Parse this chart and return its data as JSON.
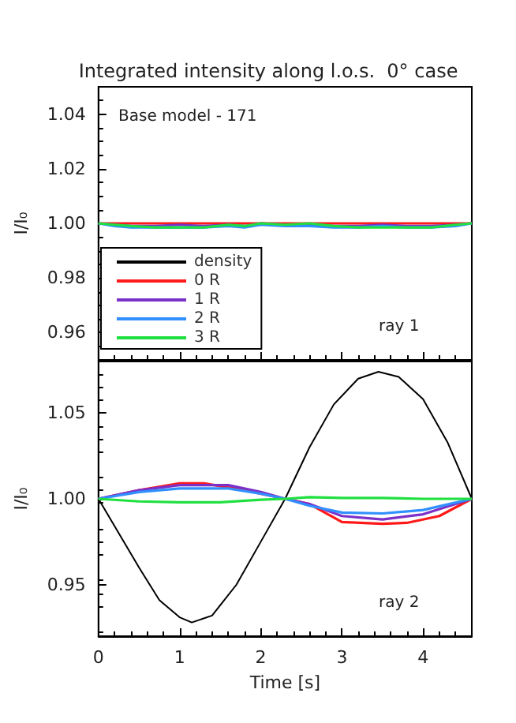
{
  "chart_data": [
    {
      "type": "line",
      "title": "Integrated intensity along l.o.s.  0° case",
      "ylabel": "I/I₀",
      "annotations": [
        "Base model - 171",
        "ray 1"
      ],
      "xlim": [
        0,
        4.6
      ],
      "xticks": [
        {
          "value": 0,
          "label": null
        },
        {
          "value": 1,
          "label": null
        },
        {
          "value": 2,
          "label": null
        },
        {
          "value": 3,
          "label": null
        },
        {
          "value": 4,
          "label": null
        }
      ],
      "ylim": [
        0.95,
        1.05
      ],
      "yticks": [
        0.96,
        0.98,
        {
          "value": 1,
          "label": "1.00"
        },
        1.02,
        1.04
      ],
      "tick_labels": "y",
      "legend": "bottom left",
      "grid": false,
      "line_style": "solid",
      "marker": "none",
      "series": [
        {
          "name": "density",
          "color": "#000000"
        },
        {
          "name": "0 R",
          "color": "#ff1a1a",
          "x": [
            0,
            0.5,
            1,
            1.5,
            2,
            2.5,
            3,
            3.5,
            4,
            4.6
          ],
          "values": [
            1,
            1,
            1,
            1,
            1,
            1,
            1,
            1,
            1,
            1
          ]
        },
        {
          "name": "1 R",
          "color": "#7b30c8",
          "x": [
            0,
            0.2,
            0.4,
            0.7,
            1.0,
            1.3,
            1.6,
            1.8,
            2.0,
            2.3,
            2.6,
            2.9,
            3.2,
            3.5,
            3.8,
            4.1,
            4.4,
            4.6
          ],
          "values": [
            1,
            0.9995,
            0.999,
            0.999,
            0.9995,
            0.999,
            0.9995,
            0.999,
            1,
            0.9995,
            0.9995,
            0.999,
            0.999,
            0.9995,
            0.999,
            0.999,
            0.9995,
            1
          ]
        },
        {
          "name": "2 R",
          "color": "#3090ff",
          "x": [
            0,
            0.2,
            0.4,
            0.7,
            1.0,
            1.3,
            1.6,
            1.8,
            2.0,
            2.3,
            2.6,
            2.9,
            3.2,
            3.5,
            3.8,
            4.1,
            4.4,
            4.6
          ],
          "values": [
            1,
            0.999,
            0.9985,
            0.9985,
            0.9985,
            0.9985,
            0.999,
            0.9985,
            0.9995,
            0.999,
            0.999,
            0.9985,
            0.9985,
            0.999,
            0.9985,
            0.9985,
            0.999,
            1
          ]
        },
        {
          "name": "3 R",
          "color": "#20e040",
          "x": [
            0,
            0.2,
            0.4,
            0.7,
            1.0,
            1.3,
            1.6,
            1.8,
            2.0,
            2.3,
            2.6,
            2.9,
            3.2,
            3.5,
            3.8,
            4.1,
            4.4,
            4.6
          ],
          "values": [
            1,
            0.9995,
            0.999,
            0.9985,
            0.9985,
            0.9985,
            0.9995,
            0.999,
            1,
            0.9995,
            1,
            0.999,
            0.9985,
            0.9985,
            0.9985,
            0.9985,
            0.9995,
            1
          ]
        }
      ]
    },
    {
      "type": "line",
      "xlabel": "Time [s]",
      "ylabel": "I/I₀",
      "annotations": [
        "ray 2"
      ],
      "xlim": [
        0,
        4.6
      ],
      "xticks": [
        0,
        1,
        2,
        3,
        4
      ],
      "ylim": [
        0.92,
        1.08
      ],
      "yticks": [
        0.95,
        {
          "value": 1,
          "label": "1.00"
        },
        1.05
      ],
      "grid": false,
      "line_style": "solid",
      "marker": "none",
      "series": [
        {
          "color": "#000000",
          "x": [
            0,
            0.25,
            0.5,
            0.75,
            1.0,
            1.15,
            1.4,
            1.7,
            2.0,
            2.3,
            2.6,
            2.9,
            3.2,
            3.45,
            3.7,
            4.0,
            4.3,
            4.6
          ],
          "values": [
            1,
            0.98,
            0.96,
            0.941,
            0.931,
            0.928,
            0.932,
            0.95,
            0.975,
            1,
            1.03,
            1.055,
            1.07,
            1.074,
            1.071,
            1.058,
            1.033,
            1
          ]
        },
        {
          "color": "#ff1a1a",
          "x": [
            0,
            0.5,
            1.0,
            1.3,
            1.8,
            2.3,
            2.6,
            3.0,
            3.5,
            3.8,
            4.2,
            4.6
          ],
          "values": [
            1,
            1.005,
            1.009,
            1.009,
            1.005,
            1,
            0.997,
            0.9865,
            0.9855,
            0.986,
            0.99,
            1
          ]
        },
        {
          "color": "#7b30c8",
          "x": [
            0,
            0.5,
            1.0,
            1.6,
            2.0,
            2.3,
            2.6,
            3.0,
            3.5,
            4.0,
            4.6
          ],
          "values": [
            1,
            1.005,
            1.008,
            1.008,
            1.004,
            1,
            0.997,
            0.99,
            0.988,
            0.991,
            1
          ]
        },
        {
          "color": "#3090ff",
          "x": [
            0,
            0.5,
            1.0,
            1.6,
            2.0,
            2.3,
            2.6,
            3.0,
            3.5,
            4.0,
            4.6
          ],
          "values": [
            1,
            1.004,
            1.006,
            1.006,
            1.003,
            1,
            0.996,
            0.992,
            0.9915,
            0.9935,
            1
          ]
        },
        {
          "color": "#20e040",
          "x": [
            0,
            0.5,
            1.0,
            1.5,
            2.0,
            2.3,
            2.6,
            3.0,
            3.5,
            4.0,
            4.6
          ],
          "values": [
            1,
            0.9985,
            0.998,
            0.998,
            0.9995,
            1,
            1.001,
            1.0005,
            1.0005,
            1,
            1
          ]
        }
      ]
    }
  ]
}
